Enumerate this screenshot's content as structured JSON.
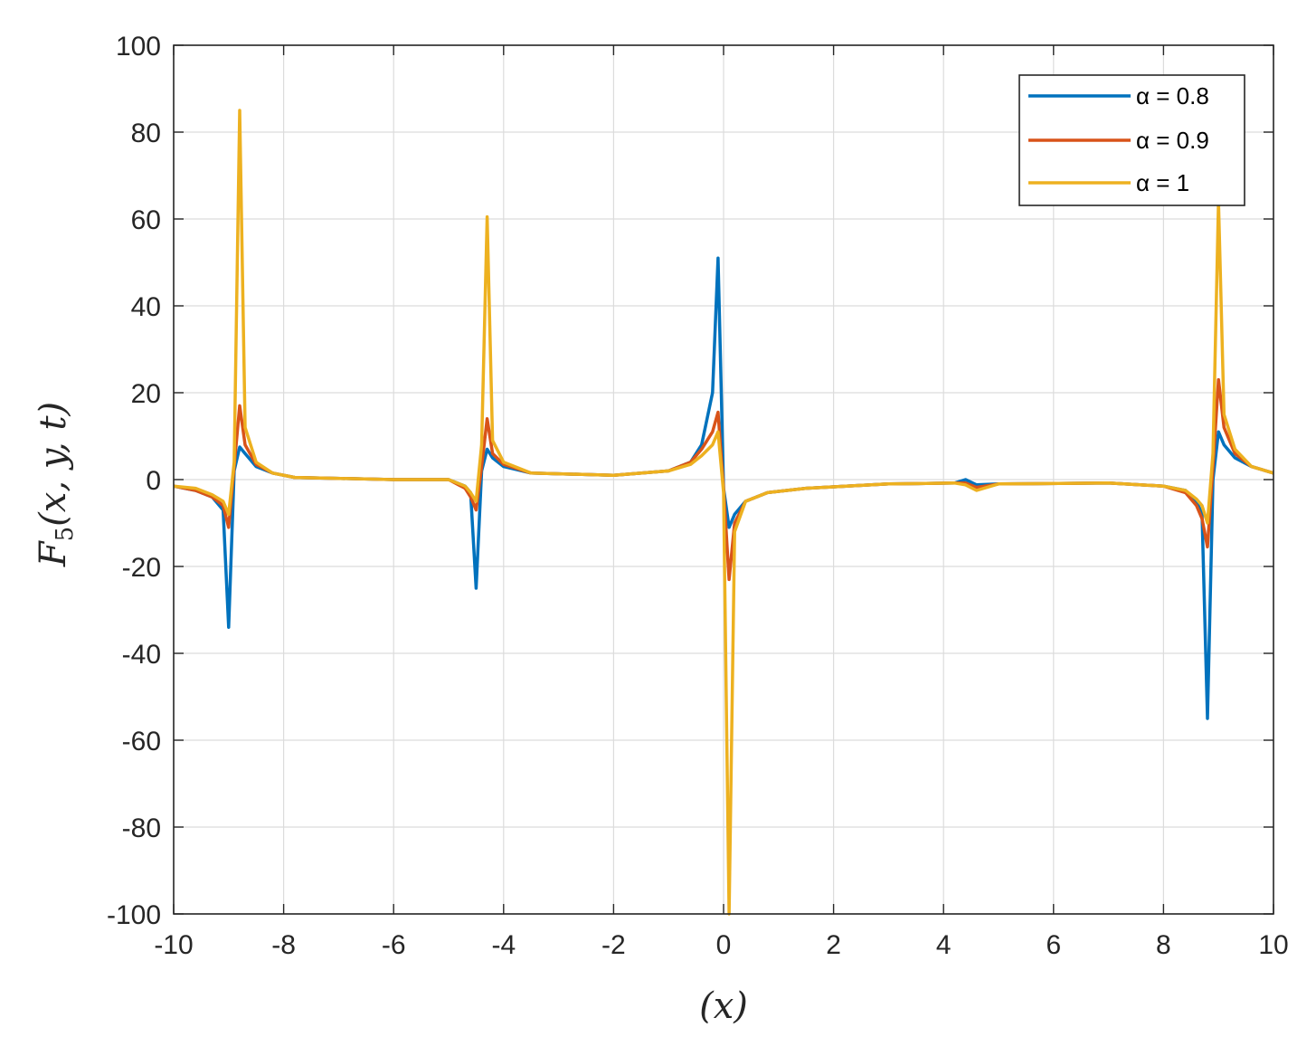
{
  "chart_data": {
    "type": "line",
    "xlabel": "(x)",
    "ylabel": "F5(x, y, t)",
    "ylabel_main": "F",
    "ylabel_sub": "5",
    "ylabel_rest": "(x, y, t)",
    "xlim": [
      -10,
      10
    ],
    "ylim": [
      -100,
      100
    ],
    "xticks": [
      -10,
      -8,
      -6,
      -4,
      -2,
      0,
      2,
      4,
      6,
      8,
      10
    ],
    "yticks": [
      -100,
      -80,
      -60,
      -40,
      -20,
      0,
      20,
      40,
      60,
      80,
      100
    ],
    "xtick_labels": [
      "-10",
      "-8",
      "-6",
      "-4",
      "-2",
      "0",
      "2",
      "4",
      "6",
      "8",
      "10"
    ],
    "ytick_labels": [
      "-100",
      "-80",
      "-60",
      "-40",
      "-20",
      "0",
      "20",
      "40",
      "60",
      "80",
      "100"
    ],
    "grid": true,
    "legend_position": "top-right",
    "series": [
      {
        "name": "α = 0.8",
        "color": "#0072BD",
        "x": [
          -10,
          -9.6,
          -9.3,
          -9.1,
          -9.0,
          -8.9,
          -8.8,
          -8.7,
          -8.5,
          -8.2,
          -7.8,
          -6.0,
          -5.0,
          -4.7,
          -4.6,
          -4.5,
          -4.4,
          -4.3,
          -4.2,
          -4.0,
          -3.5,
          -2.0,
          -1.0,
          -0.6,
          -0.4,
          -0.2,
          -0.1,
          0.0,
          0.1,
          0.2,
          0.4,
          0.8,
          1.5,
          3.0,
          4.2,
          4.4,
          4.6,
          5.0,
          7.0,
          8.0,
          8.4,
          8.6,
          8.7,
          8.8,
          8.9,
          9.0,
          9.1,
          9.3,
          9.6,
          10
        ],
        "y": [
          -1.5,
          -2.5,
          -4,
          -7,
          -34,
          2,
          7.5,
          6,
          3,
          1.5,
          0.5,
          0,
          0,
          -1.5,
          -3,
          -25,
          2,
          7,
          5,
          3,
          1.5,
          1,
          2,
          4,
          8,
          20,
          51,
          -2,
          -11,
          -8,
          -5,
          -3,
          -2,
          -1,
          -0.8,
          0,
          -1.2,
          -1,
          -0.8,
          -1.5,
          -2.5,
          -5,
          -8,
          -55,
          0,
          11,
          8,
          5,
          3,
          1.5
        ]
      },
      {
        "name": "α = 0.9",
        "color": "#D95319",
        "x": [
          -10,
          -9.6,
          -9.3,
          -9.1,
          -9.0,
          -8.9,
          -8.8,
          -8.7,
          -8.5,
          -8.2,
          -7.8,
          -6.0,
          -5.0,
          -4.7,
          -4.6,
          -4.5,
          -4.4,
          -4.3,
          -4.2,
          -4.0,
          -3.5,
          -2.0,
          -1.0,
          -0.6,
          -0.4,
          -0.2,
          -0.1,
          0.0,
          0.1,
          0.2,
          0.4,
          0.8,
          1.5,
          3.0,
          4.2,
          4.4,
          4.6,
          5.0,
          7.0,
          8.0,
          8.4,
          8.6,
          8.7,
          8.8,
          8.9,
          9.0,
          9.1,
          9.3,
          9.6,
          10
        ],
        "y": [
          -1.5,
          -2.5,
          -4,
          -6,
          -11,
          3,
          17,
          8,
          3.5,
          1.5,
          0.5,
          0,
          0,
          -2,
          -4,
          -7,
          3,
          14,
          6,
          3.5,
          1.5,
          1,
          2,
          4,
          7,
          11,
          15.5,
          -2,
          -23,
          -10,
          -5,
          -3,
          -2,
          -1,
          -0.8,
          -0.8,
          -1.8,
          -1,
          -0.8,
          -1.5,
          -3,
          -6,
          -9,
          -15.5,
          3,
          23,
          12,
          6,
          3,
          1.5
        ]
      },
      {
        "name": "α = 1",
        "color": "#EDB120",
        "x": [
          -10,
          -9.6,
          -9.3,
          -9.1,
          -9.0,
          -8.9,
          -8.8,
          -8.7,
          -8.5,
          -8.2,
          -7.8,
          -6.0,
          -5.0,
          -4.7,
          -4.6,
          -4.5,
          -4.4,
          -4.3,
          -4.2,
          -4.0,
          -3.5,
          -2.0,
          -1.0,
          -0.6,
          -0.4,
          -0.2,
          -0.1,
          0.0,
          0.1,
          0.2,
          0.4,
          0.8,
          1.5,
          3.0,
          4.2,
          4.4,
          4.6,
          5.0,
          7.0,
          8.0,
          8.4,
          8.6,
          8.7,
          8.8,
          8.9,
          9.0,
          9.1,
          9.3,
          9.6,
          10
        ],
        "y": [
          -1.5,
          -2,
          -3.5,
          -5,
          -8,
          4,
          85,
          12,
          4,
          1.5,
          0.5,
          0,
          0,
          -1.5,
          -3,
          -5,
          8,
          60.5,
          9,
          4,
          1.5,
          1,
          2,
          3.5,
          5.5,
          8,
          11,
          -3,
          -100,
          -12,
          -5,
          -3,
          -2,
          -1,
          -0.8,
          -1.2,
          -2.5,
          -1,
          -0.8,
          -1.5,
          -2.5,
          -4.5,
          -6,
          -10,
          6,
          64,
          15,
          7,
          3,
          1.5
        ]
      }
    ]
  }
}
